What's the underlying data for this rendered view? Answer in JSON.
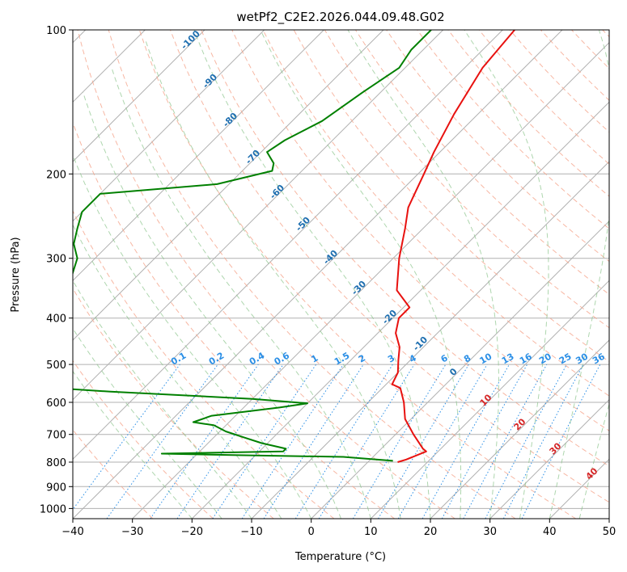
{
  "chart_data": {
    "type": "line",
    "title": "wetPf2_C2E2.2026.044.09.48.G02",
    "xlabel": "Temperature (°C)",
    "ylabel": "Pressure (hPa)",
    "xlim": [
      -40,
      50
    ],
    "ylim": [
      1050,
      100
    ],
    "y_scale": "log",
    "grid": true,
    "x_ticks": [
      -40,
      -30,
      -20,
      -10,
      0,
      10,
      20,
      30,
      40,
      50
    ],
    "y_ticks": [
      100,
      200,
      300,
      400,
      500,
      600,
      700,
      800,
      900,
      1000
    ],
    "series": [
      {
        "color": "#e8110f",
        "points": [
          [
            -48,
            100
          ],
          [
            -47,
            120
          ],
          [
            -44,
            150
          ],
          [
            -41,
            180
          ],
          [
            -39,
            200
          ],
          [
            -36,
            235
          ],
          [
            -33,
            260
          ],
          [
            -29,
            300
          ],
          [
            -24,
            350
          ],
          [
            -19,
            380
          ],
          [
            -19,
            400
          ],
          [
            -17,
            430
          ],
          [
            -14,
            460
          ],
          [
            -12,
            490
          ],
          [
            -10,
            520
          ],
          [
            -9,
            550
          ],
          [
            -7,
            560
          ],
          [
            -4,
            600
          ],
          [
            -1,
            650
          ],
          [
            3,
            700
          ],
          [
            7,
            750
          ],
          [
            8,
            760
          ],
          [
            6,
            790
          ],
          [
            5,
            800
          ]
        ]
      },
      {
        "color": "#008000",
        "points": [
          [
            -62,
            100
          ],
          [
            -62,
            110
          ],
          [
            -61,
            120
          ],
          [
            -63,
            135
          ],
          [
            -65,
            155
          ],
          [
            -68,
            170
          ],
          [
            -69,
            180
          ],
          [
            -66,
            190
          ],
          [
            -65,
            197
          ],
          [
            -72,
            210
          ],
          [
            -90,
            220
          ],
          [
            -90,
            240
          ],
          [
            -88,
            260
          ],
          [
            -86,
            280
          ],
          [
            -83,
            300
          ],
          [
            -80,
            340
          ],
          [
            -82,
            380
          ],
          [
            -78,
            400
          ],
          [
            -78,
            420
          ],
          [
            -76,
            450
          ],
          [
            -74,
            500
          ],
          [
            -71,
            545
          ],
          [
            -70,
            555
          ],
          [
            -55,
            570
          ],
          [
            -30,
            590
          ],
          [
            -20,
            603
          ],
          [
            -24,
            615
          ],
          [
            -34,
            640
          ],
          [
            -36,
            660
          ],
          [
            -32,
            670
          ],
          [
            -29,
            690
          ],
          [
            -25,
            710
          ],
          [
            -21,
            730
          ],
          [
            -16,
            750
          ],
          [
            -16,
            760
          ],
          [
            -36,
            768
          ],
          [
            -22,
            774
          ],
          [
            -5,
            780
          ],
          [
            4,
            795
          ]
        ]
      }
    ],
    "dry_adiabat_labels": [
      "-100",
      "-90",
      "-80",
      "-70",
      "-60",
      "-50",
      "-40",
      "-30",
      "-20",
      "-10",
      "0"
    ],
    "moist_adiabat_labels": [
      "10",
      "20",
      "30",
      "40"
    ],
    "mixing_ratio_labels": [
      "0.1",
      "0.2",
      "0.4",
      "0.6",
      "1",
      "1.5",
      "2",
      "3",
      "4",
      "6",
      "8",
      "10",
      "13",
      "16",
      "20",
      "25",
      "30",
      "36"
    ]
  }
}
